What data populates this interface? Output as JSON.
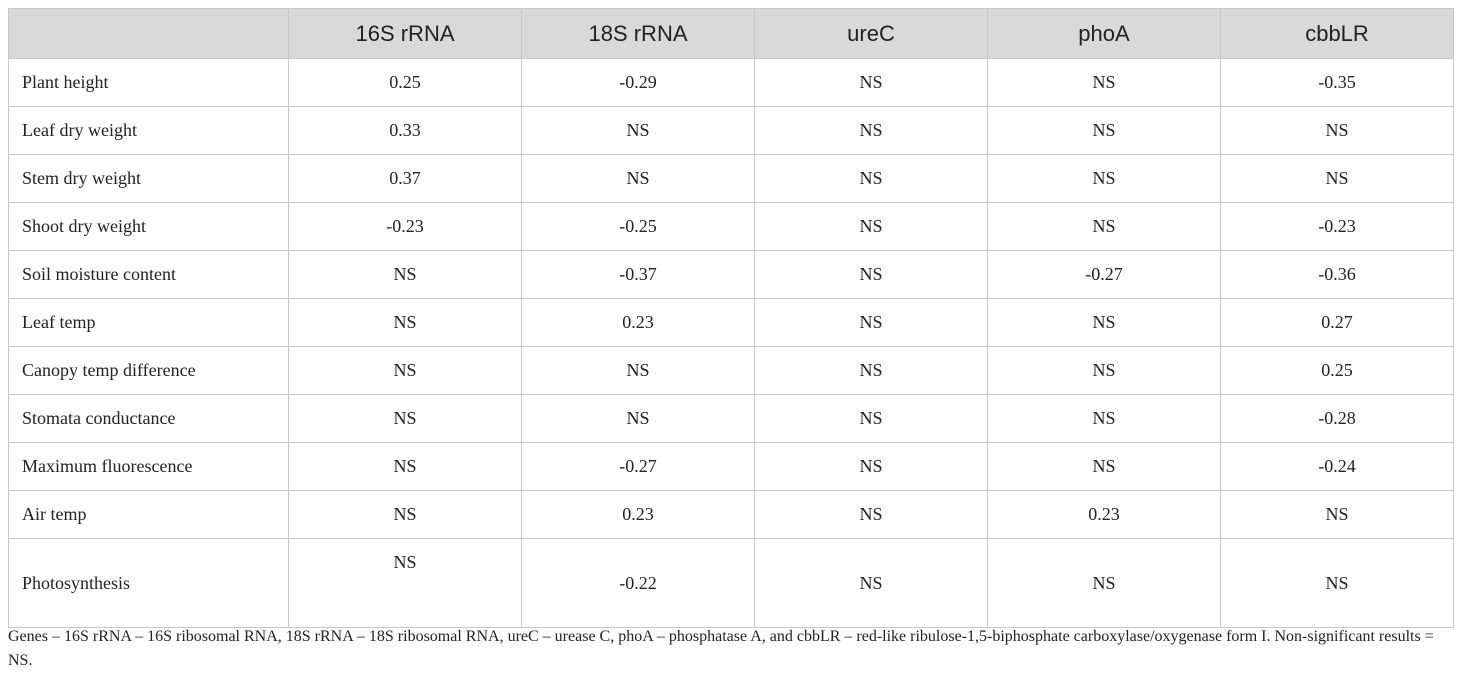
{
  "table": {
    "columns": [
      "16S rRNA",
      "18S rRNA",
      "ureC",
      "phoA",
      "cbbLR"
    ],
    "rows": [
      {
        "label": "Plant height",
        "cells": [
          "0.25",
          "-0.29",
          "NS",
          "NS",
          "-0.35"
        ]
      },
      {
        "label": "Leaf dry weight",
        "cells": [
          "0.33",
          "NS",
          "NS",
          "NS",
          "NS"
        ]
      },
      {
        "label": "Stem dry weight",
        "cells": [
          "0.37",
          "NS",
          "NS",
          "NS",
          "NS"
        ]
      },
      {
        "label": "Shoot dry weight",
        "cells": [
          "-0.23",
          "-0.25",
          "NS",
          "NS",
          "-0.23"
        ]
      },
      {
        "label": "Soil moisture content",
        "cells": [
          "NS",
          "-0.37",
          "NS",
          "-0.27",
          "-0.36"
        ]
      },
      {
        "label": "Leaf temp",
        "cells": [
          "NS",
          "0.23",
          "NS",
          "NS",
          "0.27"
        ]
      },
      {
        "label": "Canopy temp difference",
        "cells": [
          "NS",
          "NS",
          "NS",
          "NS",
          "0.25"
        ]
      },
      {
        "label": "Stomata conductance",
        "cells": [
          "NS",
          "NS",
          "NS",
          "NS",
          "-0.28"
        ]
      },
      {
        "label": "Maximum fluorescence",
        "cells": [
          "NS",
          "-0.27",
          "NS",
          "NS",
          "-0.24"
        ]
      },
      {
        "label": "Air temp",
        "cells": [
          "NS",
          "0.23",
          "NS",
          "0.23",
          "NS"
        ]
      },
      {
        "label": "Photosynthesis",
        "cells": [
          "NS",
          "-0.22",
          "NS",
          "NS",
          "NS"
        ]
      }
    ]
  },
  "footnote": "Genes – 16S rRNA – 16S ribosomal RNA, 18S rRNA – 18S ribosomal RNA, ureC – urease C, phoA – phosphatase A, and cbbLR – red-like ribulose-1,5-biphosphate carboxylase/oxygenase form I. Non-significant results = NS."
}
